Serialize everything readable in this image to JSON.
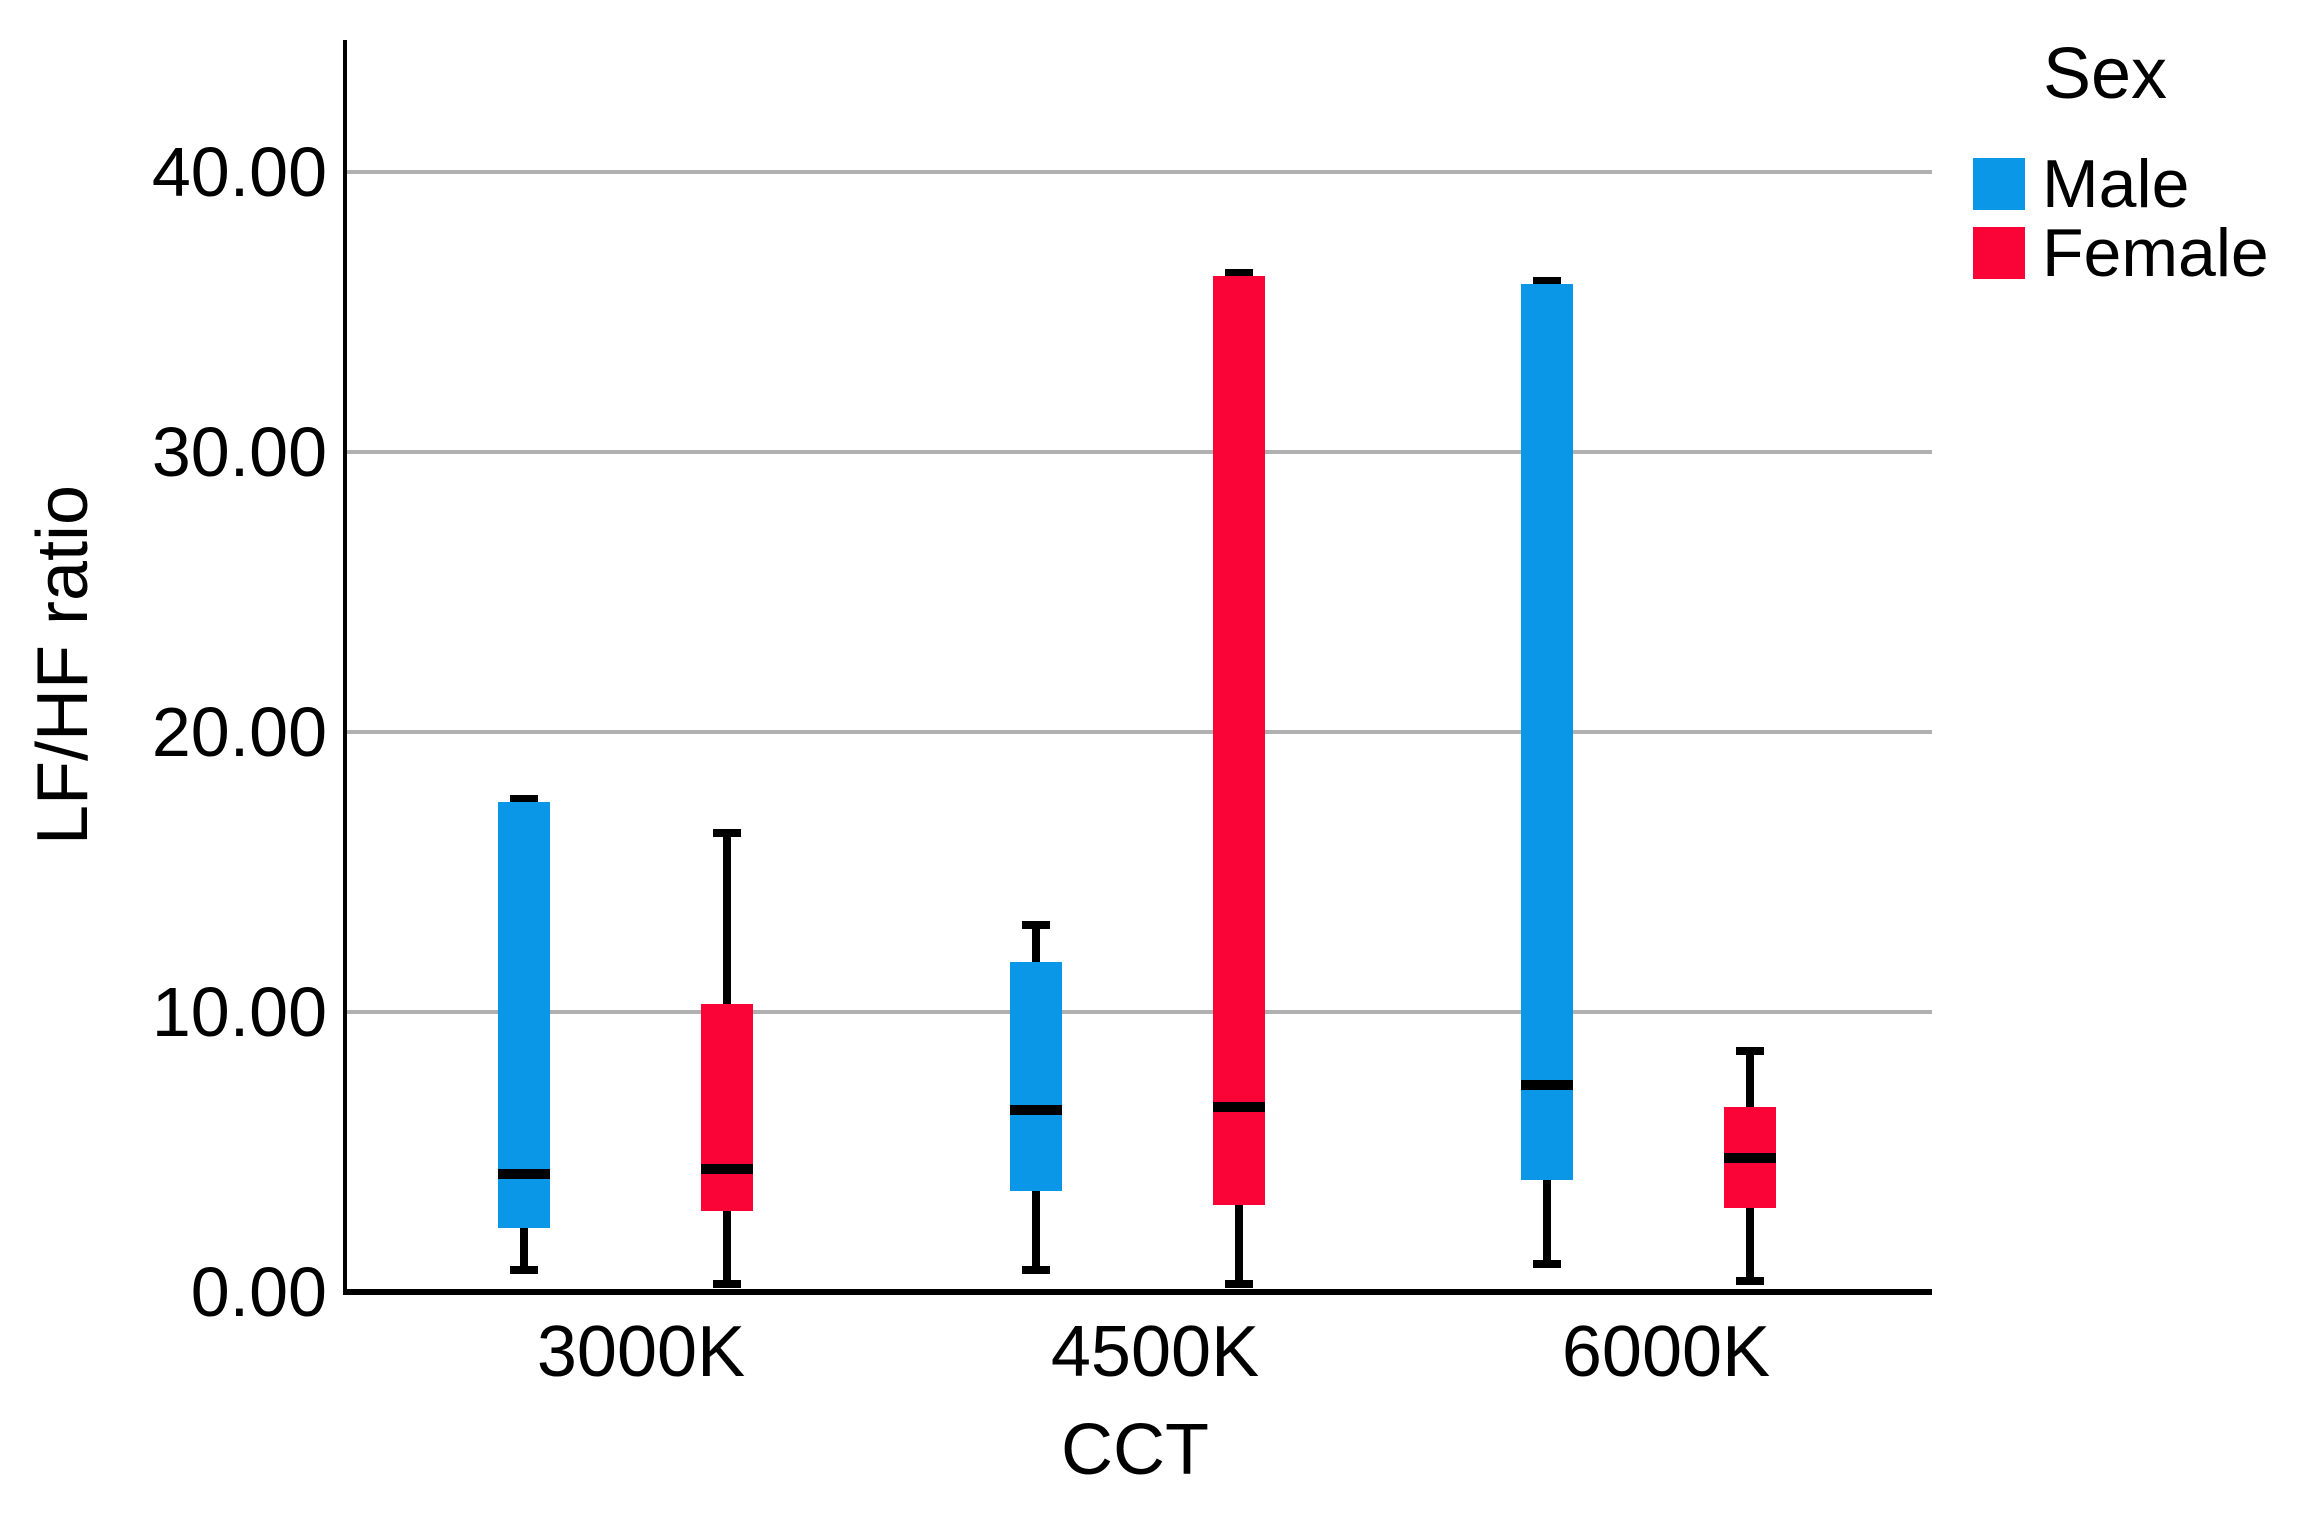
{
  "chart_data": {
    "type": "boxplot",
    "title": "",
    "xlabel": "CCT",
    "ylabel": "LF/HF ratio",
    "categories": [
      "3000K",
      "4500K",
      "6000K"
    ],
    "y_ticks": [
      {
        "label": "0.00",
        "value": 0
      },
      {
        "label": "10.00",
        "value": 10
      },
      {
        "label": "20.00",
        "value": 20
      },
      {
        "label": "30.00",
        "value": 30
      },
      {
        "label": "40.00",
        "value": 40
      }
    ],
    "grid_values": [
      10,
      20,
      30,
      40
    ],
    "ylim": [
      0,
      44.6
    ],
    "grid": true,
    "legend": {
      "title": "Sex",
      "position": "top-right",
      "entries": [
        {
          "label": "Male",
          "color": "#0a97e8"
        },
        {
          "label": "Female",
          "color": "#fa0336"
        }
      ]
    },
    "series": [
      {
        "name": "Male",
        "color": "#0a97e8",
        "boxes": [
          {
            "category": "3000K",
            "whisker_low": 0.8,
            "q1": 2.3,
            "median": 4.2,
            "q3": 17.5,
            "whisker_high": 17.6
          },
          {
            "category": "4500K",
            "whisker_low": 0.8,
            "q1": 3.6,
            "median": 6.5,
            "q3": 11.8,
            "whisker_high": 13.1
          },
          {
            "category": "6000K",
            "whisker_low": 1.0,
            "q1": 4.0,
            "median": 7.4,
            "q3": 36.0,
            "whisker_high": 36.1
          }
        ]
      },
      {
        "name": "Female",
        "color": "#fa0336",
        "boxes": [
          {
            "category": "3000K",
            "whisker_low": 0.3,
            "q1": 2.9,
            "median": 4.4,
            "q3": 10.3,
            "whisker_high": 16.4
          },
          {
            "category": "4500K",
            "whisker_low": 0.3,
            "q1": 3.1,
            "median": 6.6,
            "q3": 36.3,
            "whisker_high": 36.4
          },
          {
            "category": "6000K",
            "whisker_low": 0.4,
            "q1": 3.0,
            "median": 4.8,
            "q3": 6.6,
            "whisker_high": 8.6
          }
        ]
      }
    ]
  }
}
